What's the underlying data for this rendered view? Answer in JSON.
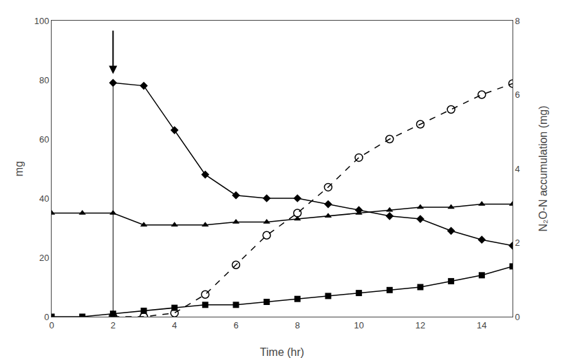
{
  "chart_data": {
    "type": "line",
    "xlabel": "Time (hr)",
    "ylabel": "mg",
    "y2label": "N₂O-N accumulation (mg)",
    "xlim": [
      0,
      15
    ],
    "ylim": [
      0,
      100
    ],
    "y2lim": [
      0,
      8
    ],
    "xticks": [
      0,
      2,
      4,
      6,
      8,
      10,
      12,
      14
    ],
    "yticks": [
      0,
      20,
      40,
      60,
      80,
      100
    ],
    "y2ticks": [
      0,
      2,
      4,
      6,
      8
    ],
    "grid": false,
    "series": [
      {
        "x": [
          0,
          1,
          2,
          3,
          4,
          5,
          6,
          7,
          8,
          9,
          10,
          11,
          12,
          13,
          14,
          15
        ],
        "values": [
          35,
          35,
          35,
          31,
          31,
          31,
          32,
          32,
          33,
          34,
          35,
          36,
          37,
          37,
          38,
          38
        ],
        "color": "black",
        "marker": "triangle-up",
        "line_style": "solid"
      },
      {
        "x": [
          0,
          1,
          2,
          3,
          4,
          5,
          6,
          7,
          8,
          9,
          10,
          11,
          12,
          13,
          14,
          15
        ],
        "values": [
          0,
          0,
          1,
          2,
          3,
          4,
          4,
          5,
          6,
          7,
          8,
          9,
          10,
          12,
          14,
          17
        ],
        "color": "black",
        "marker": "square",
        "line_style": "solid"
      },
      {
        "x": [
          2,
          3,
          4,
          5,
          6,
          7,
          8,
          9,
          10,
          11,
          12,
          13,
          14,
          15
        ],
        "values": [
          79,
          78,
          63,
          48,
          41,
          40,
          40,
          38,
          36,
          34,
          33,
          29,
          26,
          24
        ],
        "color": "black",
        "marker": "diamond",
        "line_style": "solid"
      },
      {
        "x": [
          2,
          3,
          4,
          5,
          6,
          7,
          8,
          9,
          10,
          11,
          12,
          13,
          14,
          15
        ],
        "values": [
          0.0,
          0.0,
          0.1,
          0.6,
          1.4,
          2.2,
          2.8,
          3.5,
          4.3,
          4.8,
          5.2,
          5.6,
          6.0,
          6.3
        ],
        "color": "black",
        "marker": "circle-open",
        "line_style": "dash",
        "axis": "y2"
      },
      {
        "x": [
          2,
          2
        ],
        "values": [
          0,
          79
        ],
        "color": "black",
        "marker": "none",
        "line_style": "solid"
      }
    ],
    "arrows": [
      {
        "x": 2,
        "from": 97,
        "to": 82,
        "color": "black"
      }
    ]
  }
}
